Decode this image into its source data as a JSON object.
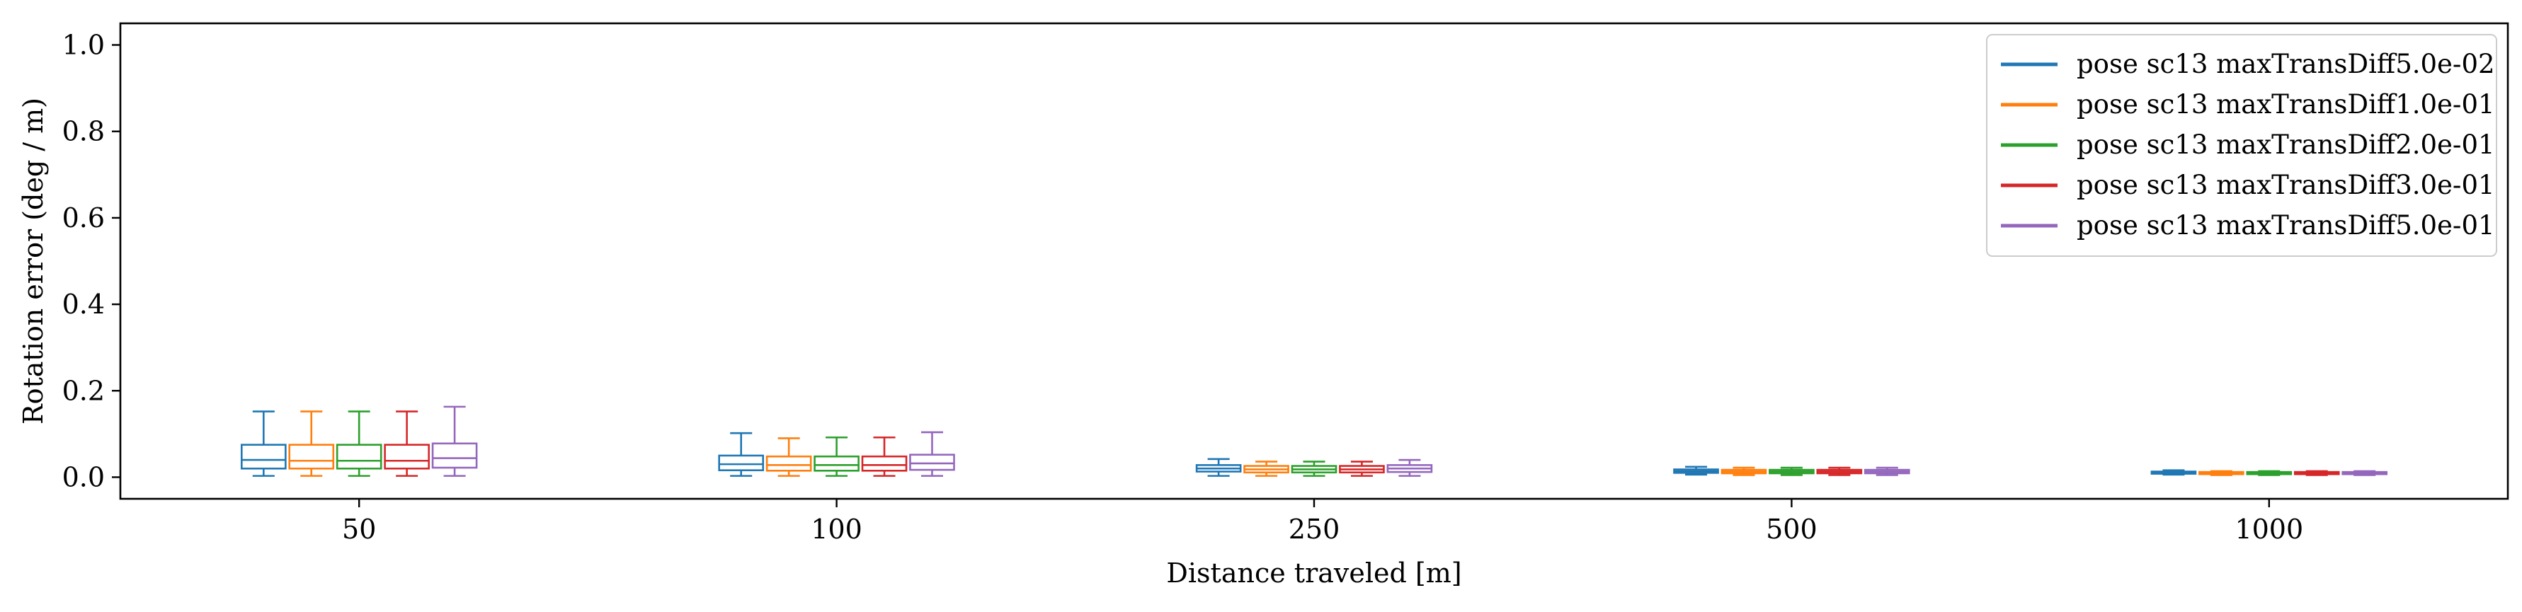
{
  "chart_data": {
    "type": "box",
    "categories": [
      "50",
      "100",
      "250",
      "500",
      "1000"
    ],
    "xlabel": "Distance traveled [m]",
    "ylabel": "Rotation error (deg / m)",
    "ylim": [
      -0.05,
      1.05
    ],
    "yticks": [
      0.0,
      0.2,
      0.4,
      0.6,
      0.8,
      1.0
    ],
    "ytick_labels": [
      "0.0",
      "0.2",
      "0.4",
      "0.6",
      "0.8",
      "1.0"
    ],
    "grid": false,
    "legend_position": "top-right",
    "series": [
      {
        "name": "pose sc13 maxTransDiff5.0e-02",
        "color": "#1f77b4",
        "boxes": [
          {
            "min": 0.003,
            "q1": 0.02,
            "median": 0.04,
            "q3": 0.075,
            "max": 0.152
          },
          {
            "min": 0.003,
            "q1": 0.016,
            "median": 0.03,
            "q3": 0.05,
            "max": 0.102
          },
          {
            "min": 0.003,
            "q1": 0.013,
            "median": 0.02,
            "q3": 0.028,
            "max": 0.042
          },
          {
            "min": 0.006,
            "q1": 0.01,
            "median": 0.014,
            "q3": 0.018,
            "max": 0.024
          },
          {
            "min": 0.006,
            "q1": 0.008,
            "median": 0.01,
            "q3": 0.013,
            "max": 0.016
          }
        ]
      },
      {
        "name": "pose sc13 maxTransDiff1.0e-01",
        "color": "#ff7f0e",
        "boxes": [
          {
            "min": 0.003,
            "q1": 0.02,
            "median": 0.038,
            "q3": 0.075,
            "max": 0.152
          },
          {
            "min": 0.003,
            "q1": 0.015,
            "median": 0.028,
            "q3": 0.048,
            "max": 0.09
          },
          {
            "min": 0.003,
            "q1": 0.011,
            "median": 0.018,
            "q3": 0.026,
            "max": 0.036
          },
          {
            "min": 0.005,
            "q1": 0.009,
            "median": 0.013,
            "q3": 0.017,
            "max": 0.022
          },
          {
            "min": 0.005,
            "q1": 0.007,
            "median": 0.009,
            "q3": 0.012,
            "max": 0.014
          }
        ]
      },
      {
        "name": "pose sc13 maxTransDiff2.0e-01",
        "color": "#2ca02c",
        "boxes": [
          {
            "min": 0.003,
            "q1": 0.02,
            "median": 0.038,
            "q3": 0.075,
            "max": 0.152
          },
          {
            "min": 0.003,
            "q1": 0.015,
            "median": 0.028,
            "q3": 0.048,
            "max": 0.092
          },
          {
            "min": 0.003,
            "q1": 0.011,
            "median": 0.018,
            "q3": 0.026,
            "max": 0.036
          },
          {
            "min": 0.005,
            "q1": 0.009,
            "median": 0.013,
            "q3": 0.017,
            "max": 0.022
          },
          {
            "min": 0.005,
            "q1": 0.007,
            "median": 0.009,
            "q3": 0.012,
            "max": 0.014
          }
        ]
      },
      {
        "name": "pose sc13 maxTransDiff3.0e-01",
        "color": "#d62728",
        "boxes": [
          {
            "min": 0.003,
            "q1": 0.02,
            "median": 0.038,
            "q3": 0.075,
            "max": 0.152
          },
          {
            "min": 0.003,
            "q1": 0.015,
            "median": 0.028,
            "q3": 0.048,
            "max": 0.092
          },
          {
            "min": 0.003,
            "q1": 0.011,
            "median": 0.018,
            "q3": 0.026,
            "max": 0.036
          },
          {
            "min": 0.005,
            "q1": 0.009,
            "median": 0.013,
            "q3": 0.017,
            "max": 0.022
          },
          {
            "min": 0.005,
            "q1": 0.007,
            "median": 0.009,
            "q3": 0.012,
            "max": 0.014
          }
        ]
      },
      {
        "name": "pose sc13 maxTransDiff5.0e-01",
        "color": "#9467bd",
        "boxes": [
          {
            "min": 0.003,
            "q1": 0.022,
            "median": 0.044,
            "q3": 0.078,
            "max": 0.163
          },
          {
            "min": 0.003,
            "q1": 0.017,
            "median": 0.032,
            "q3": 0.052,
            "max": 0.104
          },
          {
            "min": 0.003,
            "q1": 0.012,
            "median": 0.02,
            "q3": 0.028,
            "max": 0.04
          },
          {
            "min": 0.005,
            "q1": 0.009,
            "median": 0.013,
            "q3": 0.017,
            "max": 0.022
          },
          {
            "min": 0.005,
            "q1": 0.007,
            "median": 0.009,
            "q3": 0.012,
            "max": 0.014
          }
        ]
      }
    ]
  }
}
